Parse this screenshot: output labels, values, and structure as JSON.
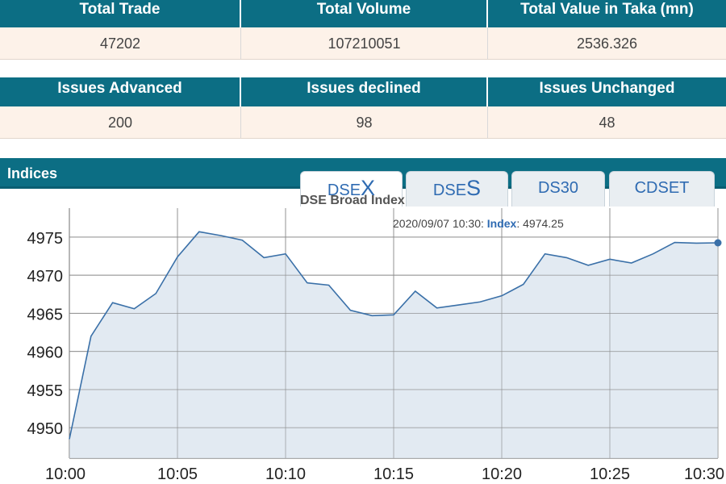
{
  "market_summary": {
    "row1": {
      "headers": [
        "Total Trade",
        "Total Volume",
        "Total Value in Taka (mn)"
      ],
      "values": [
        "47202",
        "107210051",
        "2536.326"
      ]
    },
    "row2": {
      "headers": [
        "Issues Advanced",
        "Issues declined",
        "Issues Unchanged"
      ],
      "values": [
        "200",
        "98",
        "48"
      ]
    }
  },
  "indices": {
    "title": "Indices",
    "tabs": [
      {
        "prefix": "DSE",
        "suffix": "X",
        "active": true
      },
      {
        "prefix": "DSE",
        "suffix": "S",
        "active": false
      },
      {
        "prefix": "DS30",
        "suffix": "",
        "active": false
      },
      {
        "prefix": "CDSET",
        "suffix": "",
        "active": false
      }
    ]
  },
  "tooltip": {
    "datetime": "2020/09/07 10:30:",
    "label": "Index",
    "value": "4974.25"
  },
  "colors": {
    "header_bg": "#0c6e84",
    "line": "#3a70a8",
    "area": "#dde6f0",
    "value_row_bg": "#fdf2e9"
  },
  "chart_data": {
    "type": "area",
    "title": "DSE Broad Index",
    "x": [
      "10:00",
      "10:01",
      "10:02",
      "10:03",
      "10:04",
      "10:05",
      "10:06",
      "10:07",
      "10:08",
      "10:09",
      "10:10",
      "10:11",
      "10:12",
      "10:13",
      "10:14",
      "10:15",
      "10:16",
      "10:17",
      "10:18",
      "10:19",
      "10:20",
      "10:21",
      "10:22",
      "10:23",
      "10:24",
      "10:25",
      "10:26",
      "10:27",
      "10:28",
      "10:29",
      "10:30"
    ],
    "values": [
      4948.5,
      4962.0,
      4966.4,
      4965.6,
      4967.6,
      4972.4,
      4975.7,
      4975.2,
      4974.6,
      4972.3,
      4972.8,
      4969.0,
      4968.7,
      4965.4,
      4964.7,
      4964.8,
      4967.9,
      4965.7,
      4966.1,
      4966.5,
      4967.3,
      4968.8,
      4972.8,
      4972.3,
      4971.3,
      4972.1,
      4971.6,
      4972.8,
      4974.3,
      4974.2,
      4974.25
    ],
    "x_tick_labels": [
      "10:00",
      "10:05",
      "10:10",
      "10:15",
      "10:20",
      "10:25",
      "10:30"
    ],
    "y_ticks": [
      4950,
      4955,
      4960,
      4965,
      4970,
      4975
    ],
    "ylim": [
      4946.0,
      4978.8
    ],
    "xlabel": "",
    "ylabel": "",
    "grid": true
  }
}
